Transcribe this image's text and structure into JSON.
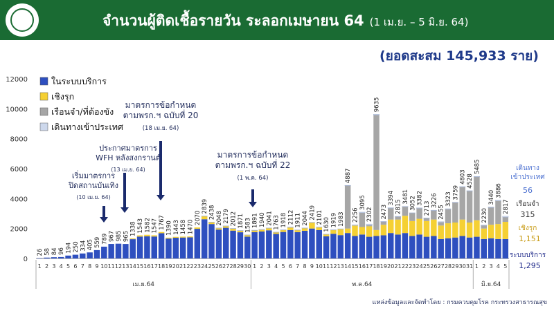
{
  "header": {
    "title": "จำนวนผู้ติดเชื้อรายวัน ระลอกเมษายน 64",
    "subtitle": "(1 เม.ย. – 5 มิ.ย. 64)",
    "total": "(ยอดสะสม 145,933 ราย)"
  },
  "source": "แหล่งข้อมูลและจัดทำโดย : กรมควบคุมโรค กระทรวงสาธารณสุข",
  "colors": {
    "domestic": "#2e4fbf",
    "active": "#f5d033",
    "prison": "#a6a6a6",
    "imported": "#cdd8ec",
    "header": "#1a6b33"
  },
  "annotations": [
    {
      "lines": [
        "เริ่มมาตรการ",
        "ปิดสถานบันเทิง"
      ],
      "date": "(10 เม.ย. 64)"
    },
    {
      "lines": [
        "ประกาศมาตรการ",
        "WFH หลังสงกรานต์"
      ],
      "date": "(13 เม.ย. 64)"
    },
    {
      "lines": [
        "มาตรการข้อกำหนด",
        "ตามพรก.ฯ ฉบับที่ 20"
      ],
      "date": "(18 เม.ย. 64)"
    },
    {
      "lines": [
        "มาตรการข้อกำหนด",
        "ตามพรก.ฯ ฉบับที่ 22"
      ],
      "date": "(1 พ.ค. 64)"
    }
  ],
  "side_labels": {
    "imported_label": [
      "เดินทาง",
      "เข้าประเทศ"
    ],
    "imported_value": "56",
    "prison_label": "เรือนจำ",
    "prison_value": "315",
    "active_label": "เชิงรุก",
    "active_value": "1,151",
    "domestic_label": "ระบบบริการ",
    "domestic_value": "1,295"
  },
  "chart_data": {
    "type": "bar",
    "stacked": true,
    "ylim": [
      0,
      12000
    ],
    "yticks": [
      0,
      2000,
      4000,
      6000,
      8000,
      10000,
      12000
    ],
    "legend": [
      {
        "name": "ในระบบบริการ",
        "key": "domestic"
      },
      {
        "name": "เชิงรุก",
        "key": "active"
      },
      {
        "name": "เรือนจำ/ที่ต้องขัง",
        "key": "prison"
      },
      {
        "name": "เดินทางเข้าประเทศ",
        "key": "imported"
      }
    ],
    "months": [
      {
        "label": "เม.ย.64",
        "start": 0,
        "end": 29
      },
      {
        "label": "พ.ค.64",
        "start": 30,
        "end": 60
      },
      {
        "label": "มิ.ย.64",
        "start": 61,
        "end": 65
      }
    ],
    "categories": [
      "1",
      "2",
      "3",
      "4",
      "5",
      "6",
      "7",
      "8",
      "9",
      "10",
      "11",
      "12",
      "13",
      "14",
      "15",
      "16",
      "17",
      "18",
      "19",
      "20",
      "21",
      "22",
      "23",
      "24",
      "25",
      "26",
      "27",
      "28",
      "29",
      "30",
      "1",
      "2",
      "3",
      "4",
      "5",
      "6",
      "7",
      "8",
      "9",
      "10",
      "11",
      "12",
      "13",
      "14",
      "15",
      "16",
      "17",
      "18",
      "19",
      "20",
      "21",
      "22",
      "23",
      "24",
      "25",
      "26",
      "27",
      "28",
      "29",
      "30",
      "31",
      "1",
      "2",
      "3",
      "4",
      "5"
    ],
    "totals": [
      26,
      58,
      84,
      96,
      194,
      250,
      334,
      405,
      559,
      789,
      967,
      985,
      965,
      1338,
      1543,
      1582,
      1547,
      1767,
      1390,
      1443,
      1458,
      1470,
      2070,
      2839,
      2438,
      2048,
      2179,
      2012,
      1871,
      1583,
      1891,
      1940,
      2041,
      1763,
      1918,
      2112,
      1911,
      2044,
      2419,
      2101,
      1630,
      1919,
      1983,
      4887,
      2256,
      3095,
      2302,
      9635,
      2473,
      3394,
      2815,
      3481,
      3052,
      3382,
      2713,
      3226,
      2455,
      3323,
      3759,
      4803,
      4528,
      5485,
      2230,
      3440,
      3886,
      2817
    ],
    "domestic": [
      26,
      58,
      84,
      96,
      194,
      250,
      334,
      405,
      559,
      789,
      967,
      985,
      965,
      1288,
      1463,
      1482,
      1467,
      1687,
      1330,
      1383,
      1398,
      1410,
      1980,
      2620,
      2300,
      1930,
      2050,
      1860,
      1750,
      1460,
      1760,
      1800,
      1880,
      1640,
      1770,
      1900,
      1760,
      1850,
      2000,
      1900,
      1480,
      1650,
      1560,
      1700,
      1500,
      1600,
      1450,
      1500,
      1550,
      1700,
      1600,
      1700,
      1500,
      1600,
      1450,
      1500,
      1300,
      1350,
      1400,
      1500,
      1400,
      1450,
      1300,
      1350,
      1300,
      1295
    ],
    "active": [
      0,
      0,
      0,
      0,
      0,
      0,
      0,
      0,
      0,
      0,
      0,
      0,
      0,
      50,
      80,
      100,
      80,
      80,
      60,
      60,
      60,
      60,
      90,
      200,
      120,
      100,
      110,
      130,
      100,
      110,
      110,
      120,
      140,
      110,
      130,
      170,
      130,
      170,
      400,
      180,
      130,
      250,
      400,
      300,
      700,
      500,
      700,
      400,
      700,
      900,
      1000,
      1150,
      1000,
      1050,
      1050,
      1100,
      900,
      1000,
      1000,
      1100,
      1000,
      1100,
      700,
      900,
      1000,
      1151
    ],
    "prison": [
      0,
      0,
      0,
      0,
      0,
      0,
      0,
      0,
      0,
      0,
      0,
      0,
      0,
      0,
      0,
      0,
      0,
      0,
      0,
      0,
      0,
      0,
      0,
      0,
      0,
      0,
      0,
      0,
      0,
      0,
      0,
      0,
      0,
      0,
      0,
      0,
      0,
      0,
      0,
      0,
      0,
      0,
      0,
      2867,
      0,
      950,
      70,
      7680,
      200,
      760,
      190,
      600,
      530,
      700,
      180,
      600,
      220,
      940,
      1330,
      2170,
      2100,
      2900,
      200,
      1150,
      1550,
      315
    ],
    "imported": [
      0,
      0,
      0,
      0,
      0,
      0,
      0,
      0,
      0,
      0,
      0,
      0,
      0,
      0,
      0,
      0,
      0,
      0,
      0,
      0,
      0,
      0,
      0,
      19,
      18,
      18,
      19,
      22,
      21,
      13,
      21,
      20,
      21,
      13,
      18,
      42,
      21,
      24,
      19,
      21,
      20,
      19,
      23,
      20,
      56,
      45,
      82,
      55,
      23,
      34,
      25,
      31,
      22,
      32,
      33,
      26,
      35,
      33,
      29,
      33,
      28,
      35,
      30,
      40,
      36,
      56
    ]
  }
}
